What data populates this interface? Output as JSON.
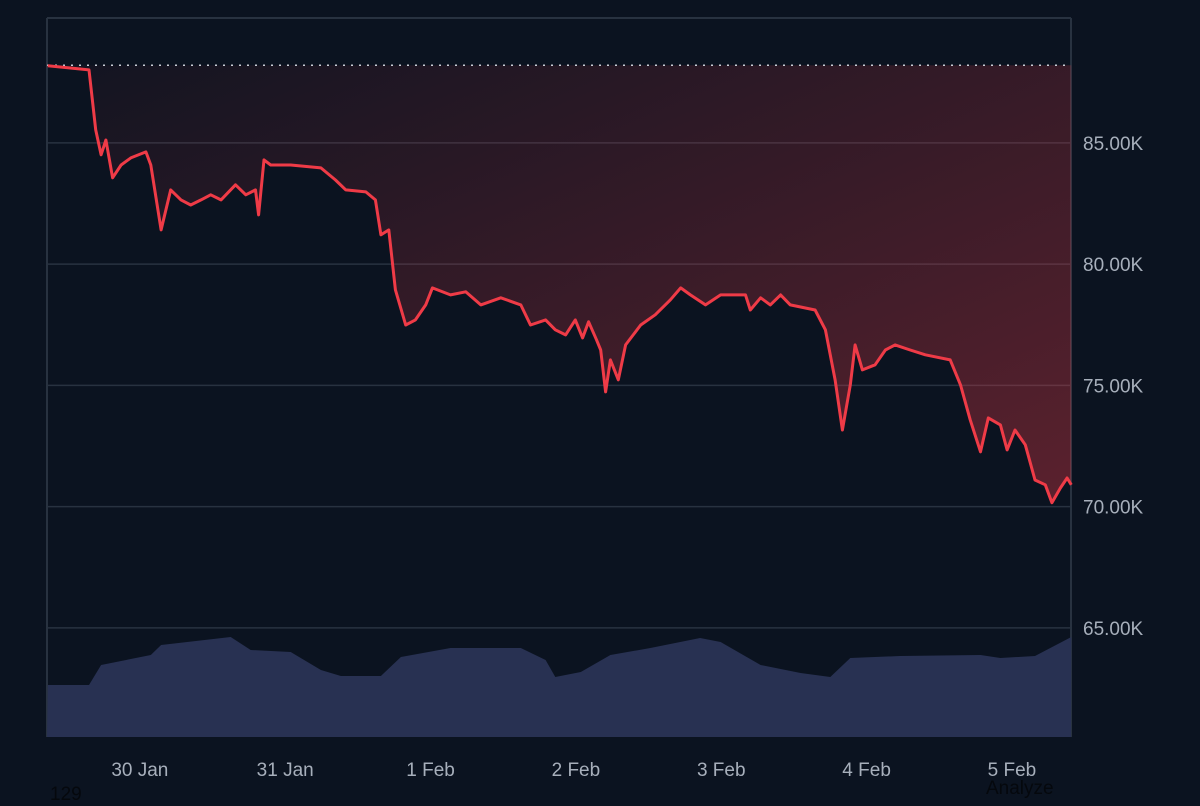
{
  "chart_data": {
    "type": "line",
    "title": "",
    "xlabel": "",
    "ylabel": "",
    "x_ticks": [
      "30 Jan",
      "31 Jan",
      "1 Feb",
      "2 Feb",
      "3 Feb",
      "4 Feb",
      "5 Feb"
    ],
    "y_ticks": [
      {
        "value": 65000,
        "label": "65.00K"
      },
      {
        "value": 70000,
        "label": "70.00K"
      },
      {
        "value": 75000,
        "label": "75.00K"
      },
      {
        "value": 80000,
        "label": "80.00K"
      },
      {
        "value": 85000,
        "label": "85.00K"
      }
    ],
    "xlim": [
      "29 Jan 08:40",
      "5 Feb 09:45"
    ],
    "ylim": [
      60500,
      90150
    ],
    "grid": true,
    "y_axis_side": "right",
    "reference_line": {
      "value": 88200,
      "style": "dotted"
    },
    "colors": {
      "line": "#ef3b47",
      "fill": "#ef3b47",
      "volume": "#283152",
      "grid": "#283240",
      "reference": "#c9ced6",
      "text": "#a7afbb",
      "background": "#0b1320"
    },
    "series": [
      {
        "type": "line",
        "points": [
          [
            "29 Jan 08:48",
            88180
          ],
          [
            "29 Jan 15:36",
            88010
          ],
          [
            "29 Jan 16:42",
            85540
          ],
          [
            "29 Jan 17:36",
            84510
          ],
          [
            "29 Jan 18:24",
            85120
          ],
          [
            "29 Jan 19:30",
            83560
          ],
          [
            "29 Jan 20:54",
            84090
          ],
          [
            "29 Jan 22:30",
            84380
          ],
          [
            "30 Jan 01:00",
            84630
          ],
          [
            "30 Jan 01:48",
            84090
          ],
          [
            "30 Jan 03:30",
            81410
          ],
          [
            "30 Jan 05:06",
            83060
          ],
          [
            "30 Jan 06:48",
            82650
          ],
          [
            "30 Jan 08:24",
            82440
          ],
          [
            "30 Jan 10:06",
            82650
          ],
          [
            "30 Jan 11:42",
            82860
          ],
          [
            "30 Jan 13:24",
            82650
          ],
          [
            "30 Jan 15:48",
            83270
          ],
          [
            "30 Jan 17:30",
            82860
          ],
          [
            "30 Jan 19:06",
            83060
          ],
          [
            "30 Jan 19:36",
            82030
          ],
          [
            "30 Jan 20:30",
            84300
          ],
          [
            "30 Jan 21:36",
            84090
          ],
          [
            "31 Jan 00:54",
            84090
          ],
          [
            "31 Jan 05:54",
            83970
          ],
          [
            "31 Jan 08:18",
            83470
          ],
          [
            "31 Jan 10:00",
            83060
          ],
          [
            "31 Jan 13:18",
            82980
          ],
          [
            "31 Jan 14:54",
            82650
          ],
          [
            "31 Jan 15:48",
            81210
          ],
          [
            "31 Jan 17:06",
            81410
          ],
          [
            "31 Jan 18:12",
            78940
          ],
          [
            "31 Jan 19:54",
            77490
          ],
          [
            "31 Jan 21:30",
            77700
          ],
          [
            "31 Jan 23:12",
            78320
          ],
          [
            "1 Feb 00:18",
            79020
          ],
          [
            "1 Feb 03:18",
            78730
          ],
          [
            "1 Feb 05:48",
            78860
          ],
          [
            "1 Feb 08:18",
            78320
          ],
          [
            "1 Feb 11:36",
            78610
          ],
          [
            "1 Feb 14:54",
            78320
          ],
          [
            "1 Feb 16:30",
            77490
          ],
          [
            "1 Feb 19:00",
            77700
          ],
          [
            "1 Feb 20:36",
            77290
          ],
          [
            "1 Feb 22:18",
            77080
          ],
          [
            "1 Feb 23:54",
            77700
          ],
          [
            "2 Feb 01:06",
            76960
          ],
          [
            "2 Feb 02:06",
            77620
          ],
          [
            "2 Feb 03:24",
            76880
          ],
          [
            "2 Feb 04:06",
            76460
          ],
          [
            "2 Feb 04:54",
            74730
          ],
          [
            "2 Feb 05:42",
            76050
          ],
          [
            "2 Feb 07:00",
            75230
          ],
          [
            "2 Feb 08:12",
            76670
          ],
          [
            "2 Feb 10:42",
            77490
          ],
          [
            "2 Feb 13:06",
            77910
          ],
          [
            "2 Feb 15:36",
            78530
          ],
          [
            "2 Feb 17:18",
            79020
          ],
          [
            "2 Feb 18:54",
            78730
          ],
          [
            "2 Feb 21:24",
            78320
          ],
          [
            "2 Feb 23:54",
            78730
          ],
          [
            "3 Feb 04:00",
            78730
          ],
          [
            "3 Feb 04:48",
            78110
          ],
          [
            "3 Feb 06:30",
            78610
          ],
          [
            "3 Feb 08:06",
            78320
          ],
          [
            "3 Feb 09:48",
            78730
          ],
          [
            "3 Feb 11:24",
            78320
          ],
          [
            "3 Feb 15:30",
            78110
          ],
          [
            "3 Feb 17:12",
            77290
          ],
          [
            "3 Feb 18:48",
            75230
          ],
          [
            "3 Feb 20:00",
            73160
          ],
          [
            "3 Feb 21:18",
            75020
          ],
          [
            "3 Feb 22:06",
            76670
          ],
          [
            "3 Feb 23:18",
            75640
          ],
          [
            "4 Feb 01:24",
            75850
          ],
          [
            "4 Feb 03:06",
            76460
          ],
          [
            "4 Feb 04:42",
            76670
          ],
          [
            "4 Feb 07:12",
            76460
          ],
          [
            "4 Feb 09:42",
            76260
          ],
          [
            "4 Feb 13:48",
            76050
          ],
          [
            "4 Feb 15:30",
            75020
          ],
          [
            "4 Feb 17:06",
            73580
          ],
          [
            "4 Feb 18:48",
            72260
          ],
          [
            "4 Feb 20:06",
            73660
          ],
          [
            "4 Feb 22:06",
            73370
          ],
          [
            "4 Feb 23:12",
            72340
          ],
          [
            "5 Feb 00:30",
            73160
          ],
          [
            "5 Feb 02:12",
            72550
          ],
          [
            "5 Feb 03:48",
            71100
          ],
          [
            "5 Feb 05:30",
            70900
          ],
          [
            "5 Feb 06:36",
            70160
          ],
          [
            "5 Feb 08:00",
            70770
          ],
          [
            "5 Feb 09:06",
            71180
          ],
          [
            "5 Feb 09:48",
            70900
          ]
        ]
      },
      {
        "type": "area",
        "role": "volume",
        "relative": true,
        "points": [
          [
            "29 Jan 08:48",
            0.52
          ],
          [
            "29 Jan 15:36",
            0.52
          ],
          [
            "29 Jan 17:36",
            0.72
          ],
          [
            "30 Jan 01:48",
            0.82
          ],
          [
            "30 Jan 03:30",
            0.92
          ],
          [
            "30 Jan 15:00",
            1.0
          ],
          [
            "30 Jan 18:18",
            0.87
          ],
          [
            "31 Jan 00:54",
            0.85
          ],
          [
            "31 Jan 05:54",
            0.67
          ],
          [
            "31 Jan 09:12",
            0.61
          ],
          [
            "31 Jan 15:48",
            0.61
          ],
          [
            "31 Jan 19:06",
            0.8
          ],
          [
            "1 Feb 03:18",
            0.89
          ],
          [
            "1 Feb 14:54",
            0.89
          ],
          [
            "1 Feb 19:00",
            0.77
          ],
          [
            "1 Feb 20:36",
            0.6
          ],
          [
            "2 Feb 00:48",
            0.65
          ],
          [
            "2 Feb 05:42",
            0.82
          ],
          [
            "2 Feb 12:18",
            0.89
          ],
          [
            "2 Feb 20:30",
            0.99
          ],
          [
            "2 Feb 23:54",
            0.95
          ],
          [
            "3 Feb 06:30",
            0.72
          ],
          [
            "3 Feb 13:06",
            0.64
          ],
          [
            "3 Feb 18:00",
            0.6
          ],
          [
            "3 Feb 21:18",
            0.79
          ],
          [
            "4 Feb 05:30",
            0.81
          ],
          [
            "4 Feb 18:48",
            0.82
          ],
          [
            "4 Feb 22:06",
            0.79
          ],
          [
            "5 Feb 03:48",
            0.81
          ],
          [
            "5 Feb 09:48",
            1.0
          ]
        ]
      }
    ]
  },
  "footer": {
    "left_text": "129",
    "right_text": "Analyze"
  }
}
